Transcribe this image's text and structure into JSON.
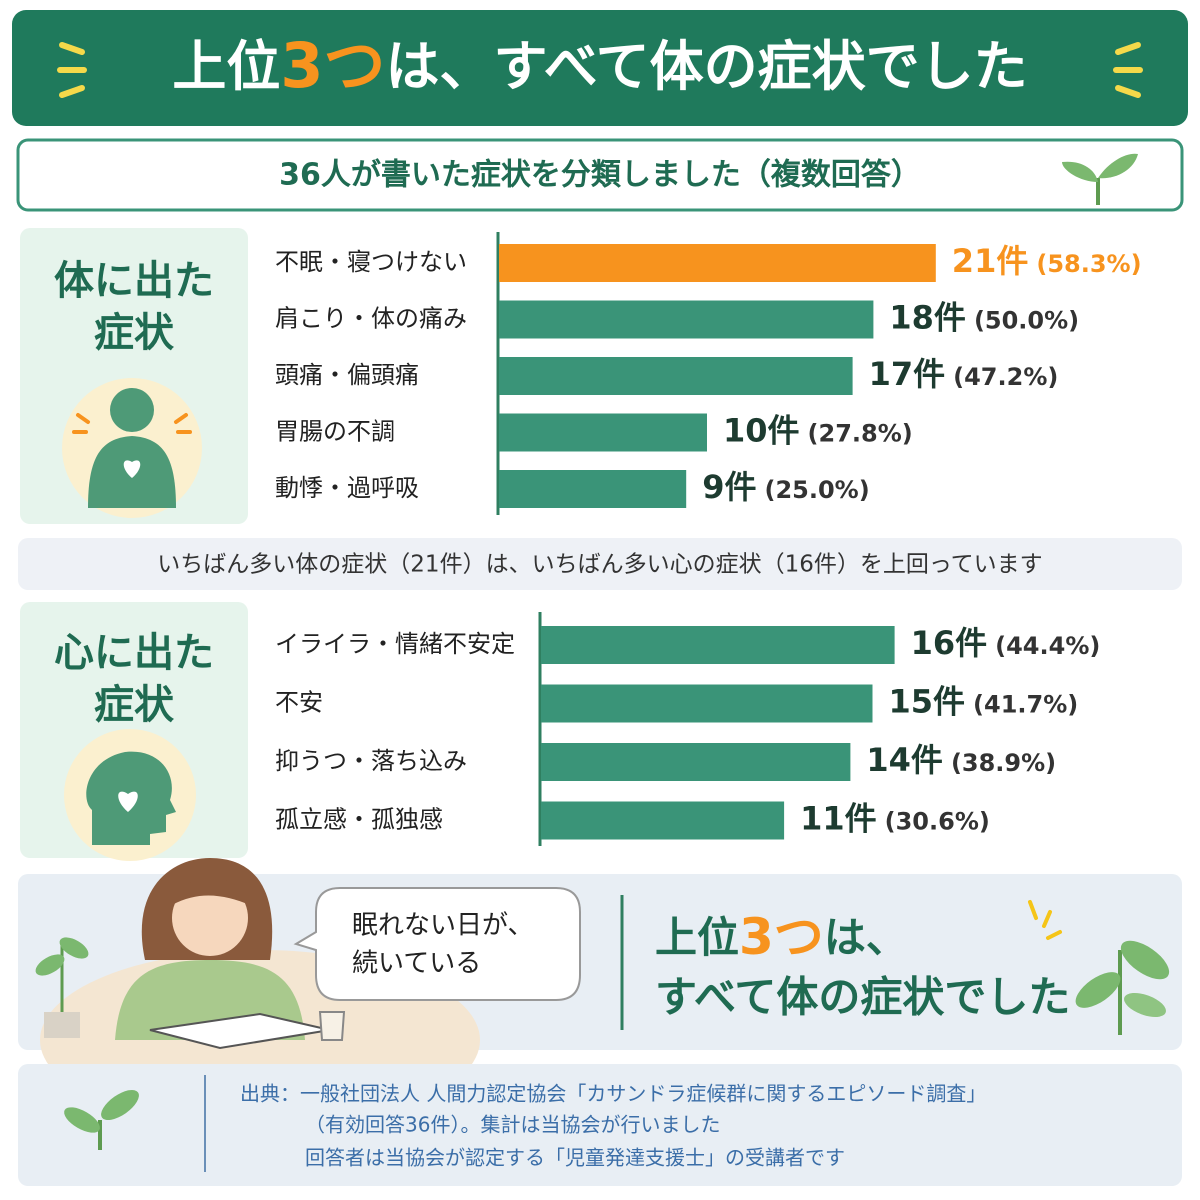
{
  "header": {
    "title_parts": [
      "上位",
      "3つ",
      "は、すべて体の症状でした"
    ]
  },
  "subtitle": "36人が書いた症状を分類しました（複数回答）",
  "chart_data": [
    {
      "type": "bar",
      "orientation": "horizontal",
      "title": [
        "体に出た",
        "症状"
      ],
      "categories": [
        "不眠・寝つけない",
        "肩こり・体の痛み",
        "頭痛・偏頭痛",
        "胃腸の不調",
        "動悸・過呼吸"
      ],
      "values": [
        21,
        18,
        17,
        10,
        9
      ],
      "value_labels": [
        "21件",
        "18件",
        "17件",
        "10件",
        "9件"
      ],
      "percent_labels": [
        "(58.3%)",
        "(50.0%)",
        "(47.2%)",
        "(27.8%)",
        "(25.0%)"
      ],
      "colors": [
        "#f7931e",
        "#3a9478",
        "#3a9478",
        "#3a9478",
        "#3a9478"
      ]
    },
    {
      "type": "bar",
      "orientation": "horizontal",
      "title": [
        "心に出た",
        "症状"
      ],
      "categories": [
        "イライラ・情緒不安定",
        "不安",
        "抑うつ・落ち込み",
        "孤立感・孤独感"
      ],
      "values": [
        16,
        15,
        14,
        11
      ],
      "value_labels": [
        "16件",
        "15件",
        "14件",
        "11件"
      ],
      "percent_labels": [
        "(44.4%)",
        "(41.7%)",
        "(38.9%)",
        "(30.6%)"
      ],
      "colors": [
        "#3a9478",
        "#3a9478",
        "#3a9478",
        "#3a9478"
      ]
    }
  ],
  "note": "いちばん多い体の症状（21件）は、いちばん多い心の症状（16件）を上回っています",
  "callout": {
    "speech": [
      "眠れない日が、",
      "続いている"
    ],
    "summary_parts": [
      "上位",
      "3つ",
      "は、"
    ],
    "summary_line2": "すべて体の症状でした"
  },
  "source": [
    "出典：一般社団法人 人間力認定協会「カサンドラ症候群に関するエピソード調査」",
    "（有効回答36件）。集計は当協会が行いました",
    "回答者は当協会が認定する「児童発達支援士」の受講者です"
  ]
}
